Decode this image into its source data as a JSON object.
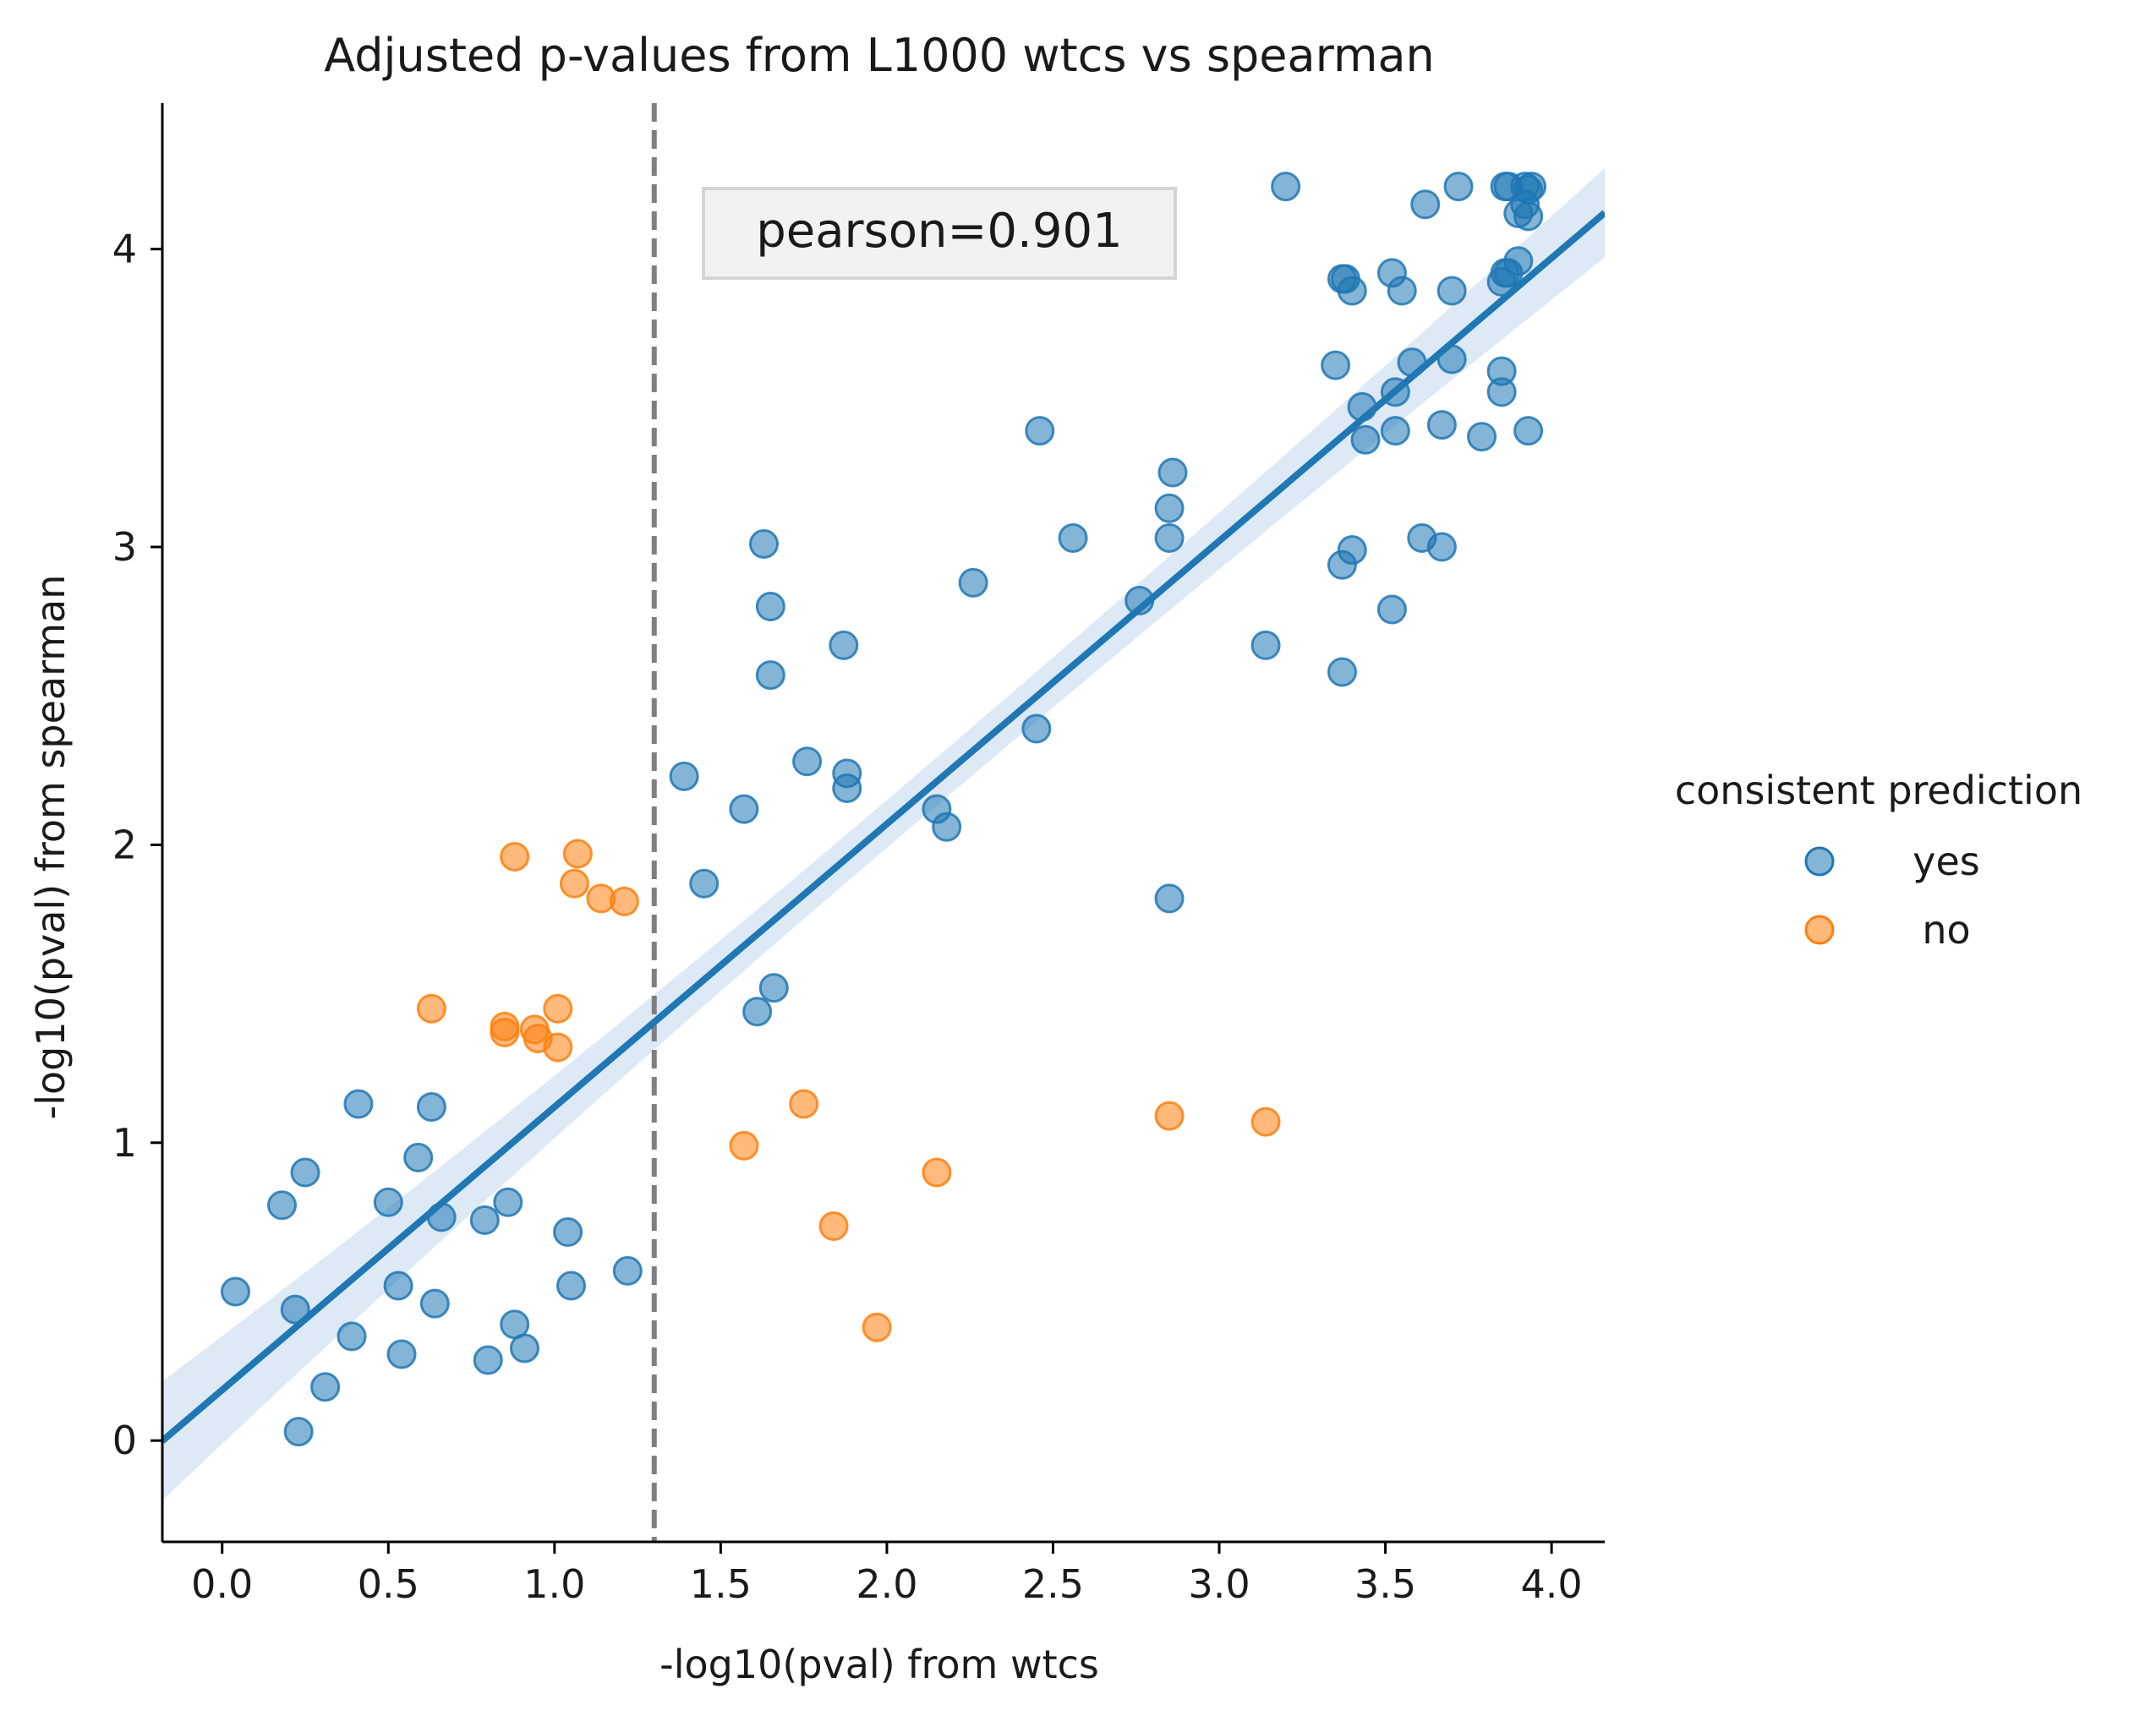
{
  "chart_data": {
    "type": "scatter",
    "title": "Adjusted p-values from L1000 wtcs vs spearman",
    "xlabel": "-log10(pval) from wtcs",
    "ylabel": "-log10(pval) from spearman",
    "xlim": [
      -0.18,
      4.16
    ],
    "ylim": [
      -0.34,
      4.49
    ],
    "x_ticks": [
      0.0,
      0.5,
      1.0,
      1.5,
      2.0,
      2.5,
      3.0,
      3.5,
      4.0
    ],
    "x_tick_labels": [
      "0.0",
      "0.5",
      "1.0",
      "1.5",
      "2.0",
      "2.5",
      "3.0",
      "3.5",
      "4.0"
    ],
    "y_ticks": [
      0,
      1,
      2,
      3,
      4
    ],
    "y_tick_labels": [
      "0",
      "1",
      "2",
      "3",
      "4"
    ],
    "grid": false,
    "legend": {
      "title": "consistent prediction",
      "placement": "right-center",
      "entries": [
        "yes",
        "no"
      ]
    },
    "annotation": "pearson=0.901",
    "threshold_line": {
      "x": 1.3,
      "style": "dashed",
      "color": "#7f7f7f"
    },
    "regression": {
      "color": "#1f77b4",
      "band_color": "#c6dbef",
      "x_range": [
        -0.18,
        4.16
      ],
      "fit": [
        0.17,
        0.95
      ],
      "ci_half_width_low": 0.2,
      "ci_half_width_mid": 0.08,
      "ci_half_width_high": 0.15
    },
    "series": [
      {
        "name": "yes",
        "color": "#1f77b4",
        "points": [
          [
            0.04,
            0.5
          ],
          [
            0.18,
            0.79
          ],
          [
            0.22,
            0.44
          ],
          [
            0.23,
            0.03
          ],
          [
            0.25,
            0.9
          ],
          [
            0.31,
            0.18
          ],
          [
            0.39,
            0.35
          ],
          [
            0.41,
            1.13
          ],
          [
            0.5,
            0.8
          ],
          [
            0.53,
            0.52
          ],
          [
            0.54,
            0.29
          ],
          [
            0.59,
            0.95
          ],
          [
            0.63,
            1.12
          ],
          [
            0.64,
            0.46
          ],
          [
            0.66,
            0.75
          ],
          [
            0.79,
            0.74
          ],
          [
            0.8,
            0.27
          ],
          [
            0.86,
            0.8
          ],
          [
            0.88,
            0.39
          ],
          [
            0.91,
            0.31
          ],
          [
            1.04,
            0.7
          ],
          [
            1.05,
            0.52
          ],
          [
            1.22,
            0.57
          ],
          [
            1.39,
            2.23
          ],
          [
            1.45,
            1.87
          ],
          [
            1.57,
            2.12
          ],
          [
            1.61,
            1.44
          ],
          [
            1.63,
            3.01
          ],
          [
            1.65,
            2.57
          ],
          [
            1.65,
            2.8
          ],
          [
            1.66,
            1.52
          ],
          [
            1.76,
            2.28
          ],
          [
            1.87,
            2.67
          ],
          [
            1.88,
            2.24
          ],
          [
            1.88,
            2.19
          ],
          [
            2.15,
            2.12
          ],
          [
            2.18,
            2.06
          ],
          [
            2.26,
            2.88
          ],
          [
            2.45,
            2.39
          ],
          [
            2.46,
            3.39
          ],
          [
            2.56,
            3.03
          ],
          [
            2.76,
            2.82
          ],
          [
            2.85,
            1.82
          ],
          [
            2.85,
            3.03
          ],
          [
            2.85,
            3.13
          ],
          [
            2.86,
            3.25
          ],
          [
            3.14,
            2.67
          ],
          [
            3.2,
            4.21
          ],
          [
            3.35,
            3.61
          ],
          [
            3.37,
            3.9
          ],
          [
            3.37,
            2.94
          ],
          [
            3.37,
            2.58
          ],
          [
            3.38,
            3.9
          ],
          [
            3.4,
            2.99
          ],
          [
            3.4,
            3.86
          ],
          [
            3.43,
            3.47
          ],
          [
            3.44,
            3.36
          ],
          [
            3.52,
            2.79
          ],
          [
            3.52,
            3.92
          ],
          [
            3.53,
            3.39
          ],
          [
            3.53,
            3.52
          ],
          [
            3.55,
            3.86
          ],
          [
            3.58,
            3.62
          ],
          [
            3.61,
            3.03
          ],
          [
            3.62,
            4.15
          ],
          [
            3.67,
            3.0
          ],
          [
            3.67,
            3.41
          ],
          [
            3.7,
            3.86
          ],
          [
            3.7,
            3.63
          ],
          [
            3.72,
            4.21
          ],
          [
            3.79,
            3.37
          ],
          [
            3.85,
            3.59
          ],
          [
            3.85,
            3.52
          ],
          [
            3.85,
            3.89
          ],
          [
            3.86,
            3.92
          ],
          [
            3.86,
            4.21
          ],
          [
            3.87,
            4.21
          ],
          [
            3.87,
            3.92
          ],
          [
            3.9,
            3.96
          ],
          [
            3.9,
            4.12
          ],
          [
            3.92,
            4.15
          ],
          [
            3.92,
            4.21
          ],
          [
            3.93,
            3.39
          ],
          [
            3.93,
            4.11
          ],
          [
            3.93,
            4.2
          ],
          [
            3.94,
            4.21
          ]
        ]
      },
      {
        "name": "no",
        "color": "#ff7f0e",
        "points": [
          [
            0.63,
            1.45
          ],
          [
            0.85,
            1.39
          ],
          [
            0.85,
            1.37
          ],
          [
            0.88,
            1.96
          ],
          [
            0.94,
            1.38
          ],
          [
            0.95,
            1.35
          ],
          [
            1.01,
            1.32
          ],
          [
            1.01,
            1.45
          ],
          [
            1.06,
            1.87
          ],
          [
            1.07,
            1.97
          ],
          [
            1.14,
            1.82
          ],
          [
            1.21,
            1.81
          ],
          [
            1.57,
            0.99
          ],
          [
            1.75,
            1.13
          ],
          [
            1.84,
            0.72
          ],
          [
            1.97,
            0.38
          ],
          [
            2.15,
            0.9
          ],
          [
            2.85,
            1.09
          ],
          [
            3.14,
            1.07
          ]
        ]
      }
    ]
  }
}
